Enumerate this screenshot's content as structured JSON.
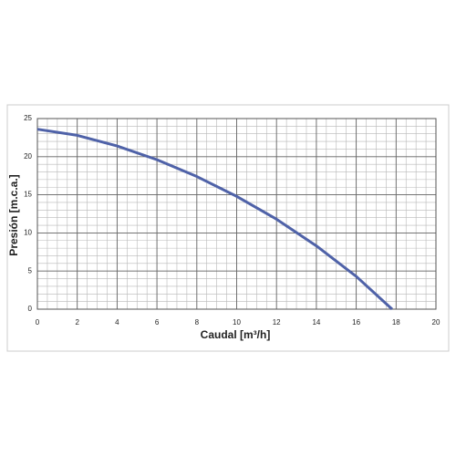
{
  "chart_data": {
    "type": "line",
    "x_label": "Caudal [m³/h]",
    "y_label": "Presión [m.c.a.]",
    "x": [
      0,
      2,
      4,
      6,
      8,
      10,
      12,
      14,
      16,
      17.8
    ],
    "series": [
      {
        "color": "#4f62a8",
        "values": [
          23.6,
          22.8,
          21.4,
          19.6,
          17.4,
          14.8,
          11.8,
          8.3,
          4.3,
          0
        ]
      }
    ],
    "xlim": [
      0,
      20
    ],
    "xticks": [
      0,
      2,
      4,
      6,
      8,
      10,
      12,
      14,
      16,
      18,
      20
    ],
    "ylim": [
      0,
      25
    ],
    "yticks": [
      0,
      5,
      10,
      15,
      20,
      25
    ],
    "grid": true,
    "xminor_step": 0.5,
    "yminor_step": 1
  }
}
